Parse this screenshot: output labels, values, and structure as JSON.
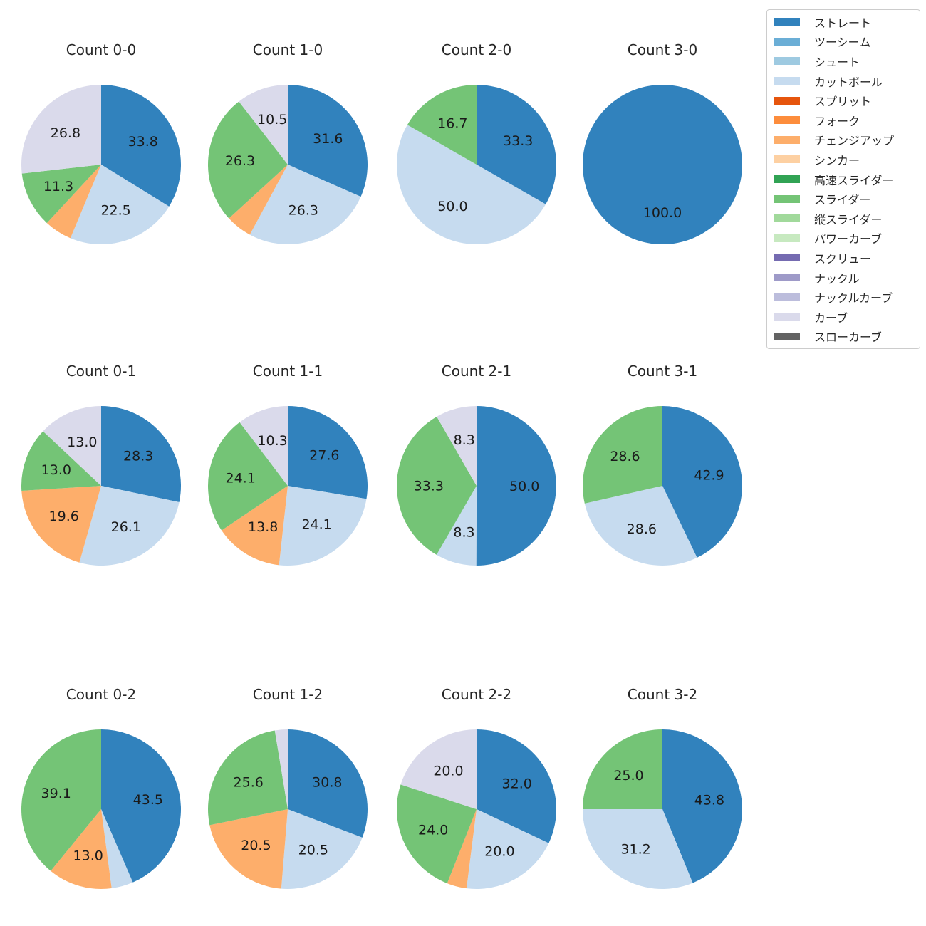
{
  "figure": {
    "background": "#ffffff"
  },
  "legend": {
    "border_color": "#cccccc",
    "position": "top-right",
    "items": [
      {
        "label": "ストレート",
        "color": "#3182bd"
      },
      {
        "label": "ツーシーム",
        "color": "#6baed6"
      },
      {
        "label": "シュート",
        "color": "#9ecae1"
      },
      {
        "label": "カットボール",
        "color": "#c6dbef"
      },
      {
        "label": "スプリット",
        "color": "#e6550d"
      },
      {
        "label": "フォーク",
        "color": "#fd8d3c"
      },
      {
        "label": "チェンジアップ",
        "color": "#fdae6b"
      },
      {
        "label": "シンカー",
        "color": "#fdd0a2"
      },
      {
        "label": "高速スライダー",
        "color": "#31a354"
      },
      {
        "label": "スライダー",
        "color": "#74c476"
      },
      {
        "label": "縦スライダー",
        "color": "#a1d99b"
      },
      {
        "label": "パワーカーブ",
        "color": "#c7e9c0"
      },
      {
        "label": "スクリュー",
        "color": "#756bb1"
      },
      {
        "label": "ナックル",
        "color": "#9e9ac8"
      },
      {
        "label": "ナックルカーブ",
        "color": "#bcbddc"
      },
      {
        "label": "カーブ",
        "color": "#dadaeb"
      },
      {
        "label": "スローカーブ",
        "color": "#636363"
      }
    ]
  },
  "chart_data": [
    {
      "type": "pie",
      "title": "Count 0-0",
      "start_angle": "top",
      "direction": "clockwise",
      "pct_distance": 0.6,
      "slices": [
        {
          "pitch": "ストレート",
          "value": 33.8,
          "pct_label": "33.8"
        },
        {
          "pitch": "カットボール",
          "value": 22.5,
          "pct_label": "22.5"
        },
        {
          "pitch": "チェンジアップ",
          "value": 5.6,
          "pct_label": ""
        },
        {
          "pitch": "スライダー",
          "value": 11.3,
          "pct_label": "11.3"
        },
        {
          "pitch": "カーブ",
          "value": 26.8,
          "pct_label": "26.8"
        }
      ]
    },
    {
      "type": "pie",
      "title": "Count 1-0",
      "start_angle": "top",
      "direction": "clockwise",
      "pct_distance": 0.6,
      "slices": [
        {
          "pitch": "ストレート",
          "value": 31.6,
          "pct_label": "31.6"
        },
        {
          "pitch": "カットボール",
          "value": 26.3,
          "pct_label": "26.3"
        },
        {
          "pitch": "チェンジアップ",
          "value": 5.3,
          "pct_label": ""
        },
        {
          "pitch": "スライダー",
          "value": 26.3,
          "pct_label": "26.3"
        },
        {
          "pitch": "カーブ",
          "value": 10.5,
          "pct_label": "10.5"
        }
      ]
    },
    {
      "type": "pie",
      "title": "Count 2-0",
      "start_angle": "top",
      "direction": "clockwise",
      "pct_distance": 0.6,
      "slices": [
        {
          "pitch": "ストレート",
          "value": 33.3,
          "pct_label": "33.3"
        },
        {
          "pitch": "カットボール",
          "value": 50.0,
          "pct_label": "50.0"
        },
        {
          "pitch": "スライダー",
          "value": 16.7,
          "pct_label": "16.7"
        }
      ]
    },
    {
      "type": "pie",
      "title": "Count 3-0",
      "start_angle": "top",
      "direction": "clockwise",
      "pct_distance": 0.6,
      "slices": [
        {
          "pitch": "ストレート",
          "value": 100.0,
          "pct_label": "100.0"
        }
      ]
    },
    {
      "type": "pie",
      "title": "Count 0-1",
      "start_angle": "top",
      "direction": "clockwise",
      "pct_distance": 0.6,
      "slices": [
        {
          "pitch": "ストレート",
          "value": 28.3,
          "pct_label": "28.3"
        },
        {
          "pitch": "カットボール",
          "value": 26.1,
          "pct_label": "26.1"
        },
        {
          "pitch": "チェンジアップ",
          "value": 19.6,
          "pct_label": "19.6"
        },
        {
          "pitch": "スライダー",
          "value": 13.0,
          "pct_label": "13.0"
        },
        {
          "pitch": "カーブ",
          "value": 13.0,
          "pct_label": "13.0"
        }
      ]
    },
    {
      "type": "pie",
      "title": "Count 1-1",
      "start_angle": "top",
      "direction": "clockwise",
      "pct_distance": 0.6,
      "slices": [
        {
          "pitch": "ストレート",
          "value": 27.6,
          "pct_label": "27.6"
        },
        {
          "pitch": "カットボール",
          "value": 24.1,
          "pct_label": "24.1"
        },
        {
          "pitch": "チェンジアップ",
          "value": 13.8,
          "pct_label": "13.8"
        },
        {
          "pitch": "スライダー",
          "value": 24.1,
          "pct_label": "24.1"
        },
        {
          "pitch": "カーブ",
          "value": 10.3,
          "pct_label": "10.3"
        }
      ]
    },
    {
      "type": "pie",
      "title": "Count 2-1",
      "start_angle": "top",
      "direction": "clockwise",
      "pct_distance": 0.6,
      "slices": [
        {
          "pitch": "ストレート",
          "value": 50.0,
          "pct_label": "50.0"
        },
        {
          "pitch": "カットボール",
          "value": 8.3,
          "pct_label": "8.3"
        },
        {
          "pitch": "スライダー",
          "value": 33.3,
          "pct_label": "33.3"
        },
        {
          "pitch": "カーブ",
          "value": 8.3,
          "pct_label": "8.3"
        }
      ]
    },
    {
      "type": "pie",
      "title": "Count 3-1",
      "start_angle": "top",
      "direction": "clockwise",
      "pct_distance": 0.6,
      "slices": [
        {
          "pitch": "ストレート",
          "value": 42.9,
          "pct_label": "42.9"
        },
        {
          "pitch": "カットボール",
          "value": 28.6,
          "pct_label": "28.6"
        },
        {
          "pitch": "スライダー",
          "value": 28.6,
          "pct_label": "28.6"
        }
      ]
    },
    {
      "type": "pie",
      "title": "Count 0-2",
      "start_angle": "top",
      "direction": "clockwise",
      "pct_distance": 0.6,
      "slices": [
        {
          "pitch": "ストレート",
          "value": 43.5,
          "pct_label": "43.5"
        },
        {
          "pitch": "カットボール",
          "value": 4.4,
          "pct_label": ""
        },
        {
          "pitch": "チェンジアップ",
          "value": 13.0,
          "pct_label": "13.0"
        },
        {
          "pitch": "スライダー",
          "value": 39.1,
          "pct_label": "39.1"
        }
      ]
    },
    {
      "type": "pie",
      "title": "Count 1-2",
      "start_angle": "top",
      "direction": "clockwise",
      "pct_distance": 0.6,
      "slices": [
        {
          "pitch": "ストレート",
          "value": 30.8,
          "pct_label": "30.8"
        },
        {
          "pitch": "カットボール",
          "value": 20.5,
          "pct_label": "20.5"
        },
        {
          "pitch": "チェンジアップ",
          "value": 20.5,
          "pct_label": "20.5"
        },
        {
          "pitch": "スライダー",
          "value": 25.6,
          "pct_label": "25.6"
        },
        {
          "pitch": "カーブ",
          "value": 2.6,
          "pct_label": ""
        }
      ]
    },
    {
      "type": "pie",
      "title": "Count 2-2",
      "start_angle": "top",
      "direction": "clockwise",
      "pct_distance": 0.6,
      "slices": [
        {
          "pitch": "ストレート",
          "value": 32.0,
          "pct_label": "32.0"
        },
        {
          "pitch": "カットボール",
          "value": 20.0,
          "pct_label": "20.0"
        },
        {
          "pitch": "チェンジアップ",
          "value": 4.0,
          "pct_label": ""
        },
        {
          "pitch": "スライダー",
          "value": 24.0,
          "pct_label": "24.0"
        },
        {
          "pitch": "カーブ",
          "value": 20.0,
          "pct_label": "20.0"
        }
      ]
    },
    {
      "type": "pie",
      "title": "Count 3-2",
      "start_angle": "top",
      "direction": "clockwise",
      "pct_distance": 0.6,
      "slices": [
        {
          "pitch": "ストレート",
          "value": 43.8,
          "pct_label": "43.8"
        },
        {
          "pitch": "カットボール",
          "value": 31.2,
          "pct_label": "31.2"
        },
        {
          "pitch": "スライダー",
          "value": 25.0,
          "pct_label": "25.0"
        }
      ]
    }
  ]
}
